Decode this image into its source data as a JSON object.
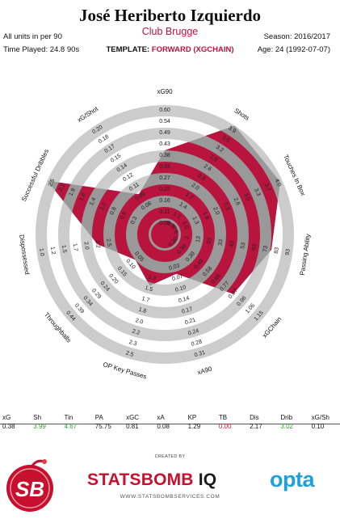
{
  "header": {
    "player": "José Heriberto Izquierdo",
    "club": "Club Brugge",
    "units": "All units in per 90",
    "time_played": "Time Played: 24.8 90s",
    "template_label": "TEMPLATE:",
    "template_value": "FORWARD (XGCHAIN)",
    "season": "Season: 2016/2017",
    "age": "Age: 24 (1992-07-07)"
  },
  "colors": {
    "accent": "#b8143e",
    "ring": "#cccccc",
    "shape_outside": "#999999",
    "good": "#2e9e2e",
    "bad": "#e0102f"
  },
  "chart_data": {
    "type": "radar",
    "axes": [
      {
        "name": "xG90",
        "ticks": [
          "0.60",
          "0.54",
          "0.49",
          "0.43",
          "0.38",
          "0.33",
          "0.27",
          "0.22",
          "0.16",
          "0.11",
          "0.05"
        ],
        "value": 0.38
      },
      {
        "name": "Shots",
        "ticks": [
          "3.9",
          "3.5",
          "3.2",
          "2.9",
          "2.6",
          "2.3",
          "2.0",
          "1.7",
          "1.4",
          "1.1",
          "0.8"
        ],
        "value": 3.99
      },
      {
        "name": "Touches In Box",
        "ticks": [
          "4.0",
          "3.7",
          "3.3",
          "3.0",
          "2.6",
          "2.3",
          "2.0",
          "1.6",
          "1.3",
          "1.0",
          "0.6"
        ],
        "value": 4.67
      },
      {
        "name": "Passing Ability",
        "ticks": [
          "93",
          "83",
          "73",
          "63",
          "53",
          "43",
          "33",
          "23",
          "13",
          "3",
          ""
        ],
        "value": 75.75
      },
      {
        "name": "xGChain",
        "ticks": [
          "1.15",
          "1.06",
          "0.96",
          "0.87",
          "0.77",
          "0.68",
          "0.58",
          "0.49",
          "0.39",
          "0.30",
          "0.20"
        ],
        "value": 0.81
      },
      {
        "name": "xA90",
        "ticks": [
          "0.31",
          "0.28",
          "0.24",
          "0.21",
          "0.17",
          "0.14",
          "0.10",
          "0.07",
          "0.03",
          "",
          ""
        ],
        "value": 0.08
      },
      {
        "name": "OP Key Passes",
        "ticks": [
          "2.5",
          "2.3",
          "2.2",
          "2.0",
          "1.8",
          "1.7",
          "1.5",
          "1.3",
          "",
          ""
        ],
        "value": 1.29
      },
      {
        "name": "Throughballs",
        "ticks": [
          "0.44",
          "0.39",
          "0.34",
          "0.29",
          "0.24",
          "0.20",
          "0.15",
          "0.10",
          "0.05",
          "",
          ""
        ],
        "value": 0.0
      },
      {
        "name": "Dispossessed",
        "ticks": [
          "1.0",
          "1.2",
          "1.5",
          "1.7",
          "2.0",
          "2.2",
          "2.5",
          "",
          ""
        ],
        "value": 2.17
      },
      {
        "name": "Successful Dribbles",
        "ticks": [
          "2.5",
          "2.2",
          "1.9",
          "1.6",
          "1.4",
          "1.1",
          "0.8",
          "0.6",
          "0.3",
          "",
          ""
        ],
        "value": 3.02
      },
      {
        "name": "xG/Shot",
        "ticks": [
          "0.20",
          "0.18",
          "0.17",
          "0.15",
          "0.14",
          "0.12",
          "0.11",
          "0.09",
          "0.08",
          "",
          ""
        ],
        "value": 0.1
      }
    ],
    "radius_fractions": [
      0.6,
      1.0,
      0.98,
      0.81,
      0.66,
      0.22,
      0.33,
      0.2,
      0.46,
      1.0,
      0.28
    ]
  },
  "stats_table": {
    "headers": [
      "xG",
      "Sh",
      "Tin",
      "PA",
      "xGC",
      "xA",
      "KP",
      "TB",
      "Dis",
      "Drib",
      "xG/Sh"
    ],
    "values": [
      "0.38",
      "3.99",
      "4.67",
      "75.75",
      "0.81",
      "0.08",
      "1.29",
      "0.00",
      "2.17",
      "3.02",
      "0.10"
    ],
    "value_colors": [
      "",
      "#2e9e2e",
      "#2e9e2e",
      "",
      "",
      "",
      "",
      "#e0102f",
      "",
      "#2e9e2e",
      ""
    ]
  },
  "footer": {
    "created_by": "CREATED BY",
    "brand_main": "STATSBOMB",
    "brand_iq": " IQ",
    "website": "WWW.STATSBOMBSERVICES.COM",
    "opta": "opta",
    "sb_logo": "SB"
  }
}
